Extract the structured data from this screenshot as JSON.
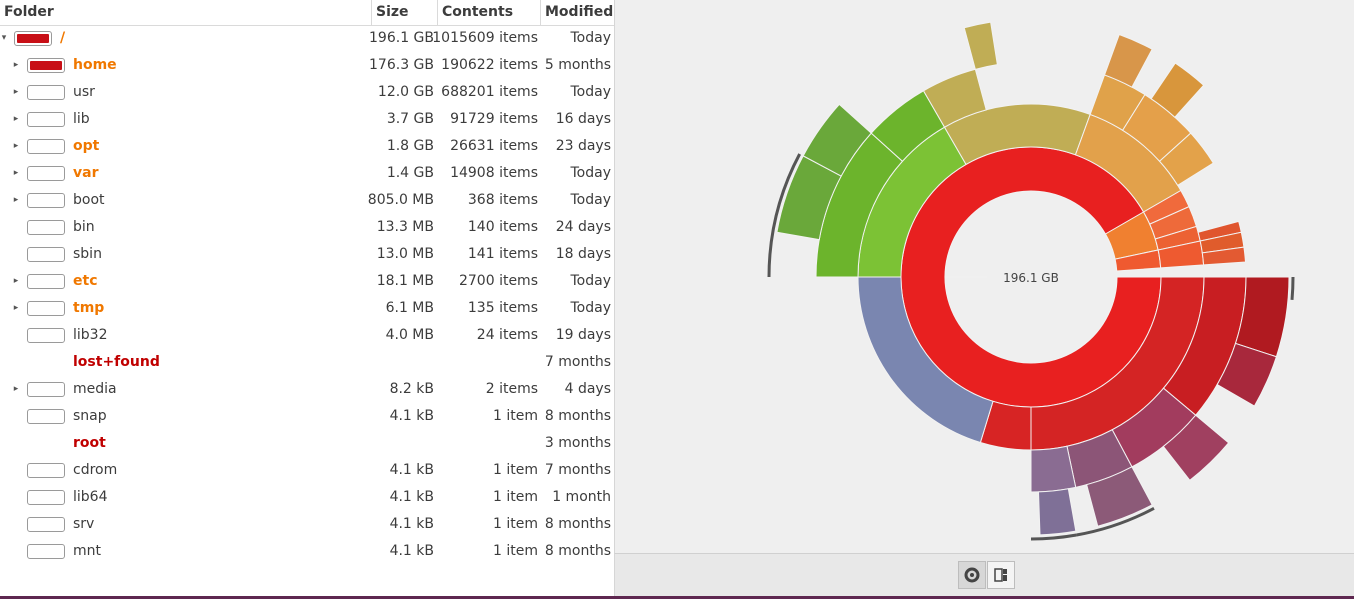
{
  "columns": {
    "folder": "Folder",
    "size": "Size",
    "contents": "Contents",
    "modified": "Modified"
  },
  "rows": [
    {
      "name": "/",
      "size": "196.1 GB",
      "contents": "1015609 items",
      "modified": "Today",
      "expander": "down",
      "chip": "#c80f16",
      "nameColor": "#f07800",
      "bold": true,
      "indent": 0
    },
    {
      "name": "home",
      "size": "176.3 GB",
      "contents": "190622 items",
      "modified": "5 months",
      "expander": "right",
      "chip": "#c80f16",
      "nameColor": "#f07800",
      "bold": true,
      "indent": 1
    },
    {
      "name": "usr",
      "size": "12.0 GB",
      "contents": "688201 items",
      "modified": "Today",
      "expander": "right",
      "chip": "",
      "nameColor": "#3c3c3c",
      "bold": false,
      "indent": 1
    },
    {
      "name": "lib",
      "size": "3.7 GB",
      "contents": "91729 items",
      "modified": "16 days",
      "expander": "right",
      "chip": "",
      "nameColor": "#3c3c3c",
      "bold": false,
      "indent": 1
    },
    {
      "name": "opt",
      "size": "1.8 GB",
      "contents": "26631 items",
      "modified": "23 days",
      "expander": "right",
      "chip": "",
      "nameColor": "#f07800",
      "bold": true,
      "indent": 1
    },
    {
      "name": "var",
      "size": "1.4 GB",
      "contents": "14908 items",
      "modified": "Today",
      "expander": "right",
      "chip": "",
      "nameColor": "#f07800",
      "bold": true,
      "indent": 1
    },
    {
      "name": "boot",
      "size": "805.0 MB",
      "contents": "368 items",
      "modified": "Today",
      "expander": "right",
      "chip": "",
      "nameColor": "#3c3c3c",
      "bold": false,
      "indent": 1
    },
    {
      "name": "bin",
      "size": "13.3 MB",
      "contents": "140 items",
      "modified": "24 days",
      "expander": "",
      "chip": "",
      "nameColor": "#3c3c3c",
      "bold": false,
      "indent": 1
    },
    {
      "name": "sbin",
      "size": "13.0 MB",
      "contents": "141 items",
      "modified": "18 days",
      "expander": "",
      "chip": "",
      "nameColor": "#3c3c3c",
      "bold": false,
      "indent": 1
    },
    {
      "name": "etc",
      "size": "18.1 MB",
      "contents": "2700 items",
      "modified": "Today",
      "expander": "right",
      "chip": "",
      "nameColor": "#f07800",
      "bold": true,
      "indent": 1
    },
    {
      "name": "tmp",
      "size": "6.1 MB",
      "contents": "135 items",
      "modified": "Today",
      "expander": "right",
      "chip": "",
      "nameColor": "#f07800",
      "bold": true,
      "indent": 1
    },
    {
      "name": "lib32",
      "size": "4.0 MB",
      "contents": "24 items",
      "modified": "19 days",
      "expander": "",
      "chip": "",
      "nameColor": "#3c3c3c",
      "bold": false,
      "indent": 1
    },
    {
      "name": "lost+found",
      "size": "",
      "contents": "",
      "modified": "7 months",
      "expander": "",
      "chip": "none",
      "nameColor": "#c00000",
      "bold": true,
      "indent": 1
    },
    {
      "name": "media",
      "size": "8.2 kB",
      "contents": "2 items",
      "modified": "4 days",
      "expander": "right",
      "chip": "",
      "nameColor": "#3c3c3c",
      "bold": false,
      "indent": 1
    },
    {
      "name": "snap",
      "size": "4.1 kB",
      "contents": "1 item",
      "modified": "8 months",
      "expander": "",
      "chip": "",
      "nameColor": "#3c3c3c",
      "bold": false,
      "indent": 1
    },
    {
      "name": "root",
      "size": "",
      "contents": "",
      "modified": "3 months",
      "expander": "",
      "chip": "none",
      "nameColor": "#c00000",
      "bold": true,
      "indent": 1
    },
    {
      "name": "cdrom",
      "size": "4.1 kB",
      "contents": "1 item",
      "modified": "7 months",
      "expander": "",
      "chip": "",
      "nameColor": "#3c3c3c",
      "bold": false,
      "indent": 1
    },
    {
      "name": "lib64",
      "size": "4.1 kB",
      "contents": "1 item",
      "modified": "1 month",
      "expander": "",
      "chip": "",
      "nameColor": "#3c3c3c",
      "bold": false,
      "indent": 1
    },
    {
      "name": "srv",
      "size": "4.1 kB",
      "contents": "1 item",
      "modified": "8 months",
      "expander": "",
      "chip": "",
      "nameColor": "#3c3c3c",
      "bold": false,
      "indent": 1
    },
    {
      "name": "mnt",
      "size": "4.1 kB",
      "contents": "1 item",
      "modified": "8 months",
      "expander": "",
      "chip": "",
      "nameColor": "#3c3c3c",
      "bold": false,
      "indent": 1
    }
  ],
  "chart": {
    "center_label": "196.1 GB",
    "colors": {
      "home": "#e82020",
      "usr": "#7a86b0",
      "lib": "#7cc235",
      "opt": "#c0ad55",
      "var": "#e2a14b",
      "small": "#f08030"
    }
  },
  "view_buttons": {
    "rings": "rings-chart-icon",
    "treemap": "treemap-chart-icon"
  }
}
